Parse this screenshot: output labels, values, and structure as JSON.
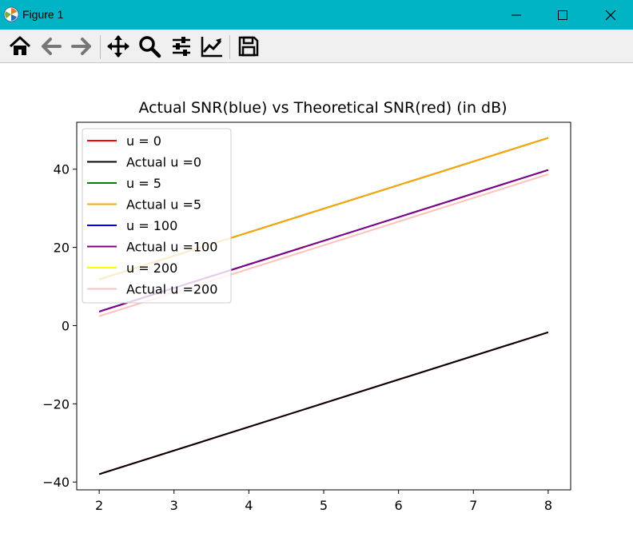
{
  "window": {
    "title": "Figure 1",
    "controls": [
      "minimize",
      "maximize",
      "close"
    ]
  },
  "toolbar": {
    "buttons": [
      {
        "name": "home",
        "icon": "home-icon"
      },
      {
        "name": "back",
        "icon": "arrow-left-icon"
      },
      {
        "name": "forward",
        "icon": "arrow-right-icon"
      },
      {
        "name": "pan",
        "icon": "move-icon"
      },
      {
        "name": "zoom",
        "icon": "magnifier-icon"
      },
      {
        "name": "subplots",
        "icon": "sliders-icon"
      },
      {
        "name": "customize",
        "icon": "line-chart-icon"
      },
      {
        "name": "save",
        "icon": "floppy-disk-icon"
      }
    ]
  },
  "chart_data": {
    "type": "line",
    "title": "Actual SNR(blue) vs Theoretical SNR(red) (in dB)",
    "xlabel": "",
    "ylabel": "",
    "xlim": [
      1.7,
      8.3
    ],
    "ylim": [
      -42,
      52
    ],
    "xticks": [
      "2",
      "3",
      "4",
      "5",
      "6",
      "7",
      "8"
    ],
    "yticks": [
      "40",
      "20",
      "0",
      "−20",
      "−40"
    ],
    "grid": false,
    "legend_position": "upper left",
    "series": [
      {
        "name": "u = 0",
        "color": "#ff0000",
        "x": [
          2,
          8
        ],
        "y": [
          -38,
          -1.7
        ]
      },
      {
        "name": "Actual u =0",
        "color": "#000000",
        "x": [
          2,
          8
        ],
        "y": [
          -38,
          -1.7
        ]
      },
      {
        "name": "u = 5",
        "color": "#008000",
        "x": [
          2,
          8
        ],
        "y": [
          11.8,
          48.0
        ]
      },
      {
        "name": "Actual u =5",
        "color": "#ffa500",
        "x": [
          2,
          8
        ],
        "y": [
          11.8,
          48.0
        ]
      },
      {
        "name": "u = 100",
        "color": "#0000ff",
        "x": [
          2,
          8
        ],
        "y": [
          3.6,
          39.8
        ]
      },
      {
        "name": "Actual u =100",
        "color": "#800080",
        "x": [
          2,
          8
        ],
        "y": [
          3.6,
          39.8
        ]
      },
      {
        "name": "u = 200",
        "color": "#ffff00",
        "x": [
          2,
          8
        ],
        "y": [
          2.4,
          38.7
        ]
      },
      {
        "name": "Actual u =200",
        "color": "#ffc0cb",
        "x": [
          2,
          8
        ],
        "y": [
          2.4,
          38.7
        ]
      }
    ],
    "draw_order": [
      0,
      2,
      4,
      6,
      1,
      3,
      5,
      7
    ]
  }
}
